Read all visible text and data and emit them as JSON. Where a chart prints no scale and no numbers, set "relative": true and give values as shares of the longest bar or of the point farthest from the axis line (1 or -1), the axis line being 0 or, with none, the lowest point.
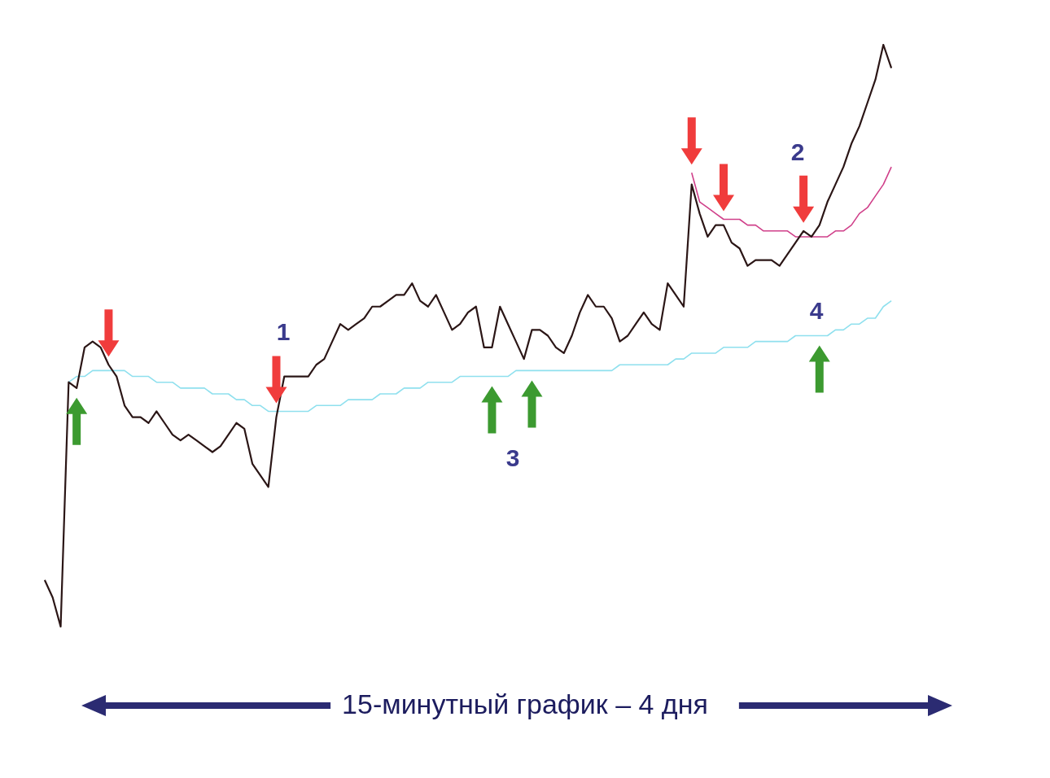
{
  "chart_data": {
    "type": "line",
    "title": "15-минутный график – 4 дня",
    "annotations": [
      "1",
      "2",
      "3",
      "4"
    ],
    "relative": true,
    "categories": [
      null,
      null,
      null,
      null,
      null,
      null,
      null,
      null,
      null,
      null,
      null,
      null,
      null,
      null,
      null,
      null,
      null,
      null,
      null,
      null,
      null,
      null,
      null,
      null,
      null,
      null,
      null,
      null,
      null,
      null,
      null,
      null,
      null,
      null,
      null,
      null,
      null,
      null,
      null,
      null,
      null,
      null,
      null,
      null,
      null,
      null,
      null,
      null,
      null,
      null,
      null,
      null,
      null,
      null,
      null,
      null,
      null,
      null,
      null,
      null,
      null,
      null,
      null,
      null,
      null,
      null,
      null,
      null,
      null,
      null,
      null,
      null,
      null,
      null,
      null,
      null,
      null,
      null,
      null,
      null,
      null,
      null,
      null,
      null,
      null,
      null,
      null,
      null,
      null,
      null,
      null,
      null,
      null,
      null,
      null,
      null,
      null,
      null,
      null,
      null,
      null,
      null,
      null,
      null,
      null,
      null,
      null
    ],
    "series": [
      {
        "color": "#2b1616",
        "values": [
          0.08,
          0.05,
          0.0,
          0.42,
          0.41,
          0.48,
          0.49,
          0.48,
          0.45,
          0.43,
          0.38,
          0.36,
          0.36,
          0.35,
          0.37,
          0.35,
          0.33,
          0.32,
          0.33,
          0.32,
          0.31,
          0.3,
          0.31,
          0.33,
          0.35,
          0.34,
          0.28,
          0.26,
          0.24,
          0.36,
          0.43,
          0.43,
          0.43,
          0.43,
          0.45,
          0.46,
          0.49,
          0.52,
          0.51,
          0.52,
          0.53,
          0.55,
          0.55,
          0.56,
          0.57,
          0.57,
          0.59,
          0.56,
          0.55,
          0.57,
          0.54,
          0.51,
          0.52,
          0.54,
          0.55,
          0.48,
          0.48,
          0.55,
          0.52,
          0.49,
          0.46,
          0.51,
          0.51,
          0.5,
          0.48,
          0.47,
          0.5,
          0.54,
          0.57,
          0.55,
          0.55,
          0.53,
          0.49,
          0.5,
          0.52,
          0.54,
          0.52,
          0.51,
          0.59,
          0.57,
          0.55,
          0.76,
          0.71,
          0.67,
          0.69,
          0.69,
          0.66,
          0.65,
          0.62,
          0.63,
          0.63,
          0.63,
          0.62,
          0.64,
          0.66,
          0.68,
          0.67,
          0.69,
          0.73,
          0.76,
          0.79,
          0.83,
          0.86,
          0.9,
          0.94,
          1.0,
          0.96
        ]
      },
      {
        "color": "#8fe0ee",
        "values": [
          null,
          null,
          null,
          0.42,
          0.43,
          0.43,
          0.44,
          0.44,
          0.44,
          0.44,
          0.44,
          0.43,
          0.43,
          0.43,
          0.42,
          0.42,
          0.42,
          0.41,
          0.41,
          0.41,
          0.41,
          0.4,
          0.4,
          0.4,
          0.39,
          0.39,
          0.38,
          0.38,
          0.37,
          0.37,
          0.37,
          0.37,
          0.37,
          0.37,
          0.38,
          0.38,
          0.38,
          0.38,
          0.39,
          0.39,
          0.39,
          0.39,
          0.4,
          0.4,
          0.4,
          0.41,
          0.41,
          0.41,
          0.42,
          0.42,
          0.42,
          0.42,
          0.43,
          0.43,
          0.43,
          0.43,
          0.43,
          0.43,
          0.43,
          0.44,
          0.44,
          0.44,
          0.44,
          0.44,
          0.44,
          0.44,
          0.44,
          0.44,
          0.44,
          0.44,
          0.44,
          0.44,
          0.45,
          0.45,
          0.45,
          0.45,
          0.45,
          0.45,
          0.45,
          0.46,
          0.46,
          0.47,
          0.47,
          0.47,
          0.47,
          0.48,
          0.48,
          0.48,
          0.48,
          0.49,
          0.49,
          0.49,
          0.49,
          0.49,
          0.5,
          0.5,
          0.5,
          0.5,
          0.5,
          0.51,
          0.51,
          0.52,
          0.52,
          0.53,
          0.53,
          0.55,
          0.56
        ]
      },
      {
        "color": "#d0408a",
        "values": [
          null,
          null,
          null,
          null,
          null,
          null,
          null,
          null,
          null,
          null,
          null,
          null,
          null,
          null,
          null,
          null,
          null,
          null,
          null,
          null,
          null,
          null,
          null,
          null,
          null,
          null,
          null,
          null,
          null,
          null,
          null,
          null,
          null,
          null,
          null,
          null,
          null,
          null,
          null,
          null,
          null,
          null,
          null,
          null,
          null,
          null,
          null,
          null,
          null,
          null,
          null,
          null,
          null,
          null,
          null,
          null,
          null,
          null,
          null,
          null,
          null,
          null,
          null,
          null,
          null,
          null,
          null,
          null,
          null,
          null,
          null,
          null,
          null,
          null,
          null,
          null,
          null,
          null,
          null,
          null,
          null,
          0.78,
          0.73,
          0.72,
          0.71,
          0.7,
          0.7,
          0.7,
          0.69,
          0.69,
          0.68,
          0.68,
          0.68,
          0.68,
          0.67,
          0.67,
          0.67,
          0.67,
          0.67,
          0.68,
          0.68,
          0.69,
          0.71,
          0.72,
          0.74,
          0.76,
          0.79
        ]
      }
    ]
  }
}
